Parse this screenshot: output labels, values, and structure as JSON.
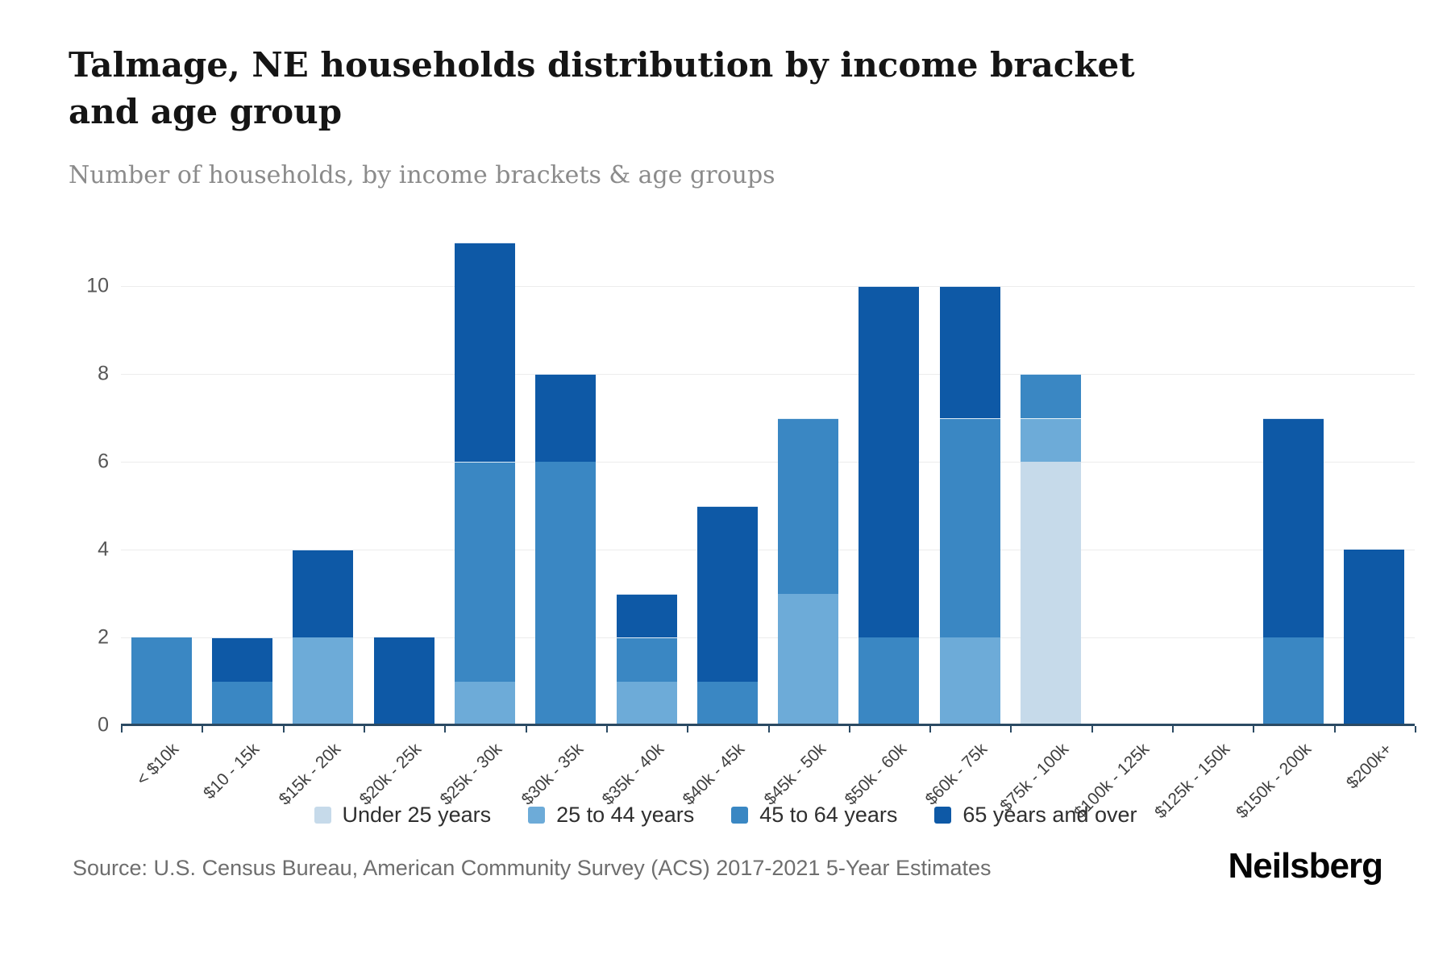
{
  "header": {
    "title": "Talmage, NE households distribution by income bracket and age group",
    "subtitle": "Number of households, by income brackets & age groups"
  },
  "chart_data": {
    "type": "bar",
    "stacked": true,
    "title": "Talmage, NE households distribution by income bracket and age group",
    "subtitle": "Number of households, by income brackets & age groups",
    "categories": [
      "< $10k",
      "$10 - 15k",
      "$15k - 20k",
      "$20k - 25k",
      "$25k - 30k",
      "$30k - 35k",
      "$35k - 40k",
      "$40k - 45k",
      "$45k - 50k",
      "$50k - 60k",
      "$60k - 75k",
      "$75k - 100k",
      "$100k - 125k",
      "$125k - 150k",
      "$150k - 200k",
      "$200k+"
    ],
    "series": [
      {
        "name": "Under 25 years",
        "color": "#c6daea",
        "values": [
          0,
          0,
          0,
          0,
          0,
          0,
          0,
          0,
          0,
          0,
          0,
          6,
          0,
          0,
          0,
          0
        ]
      },
      {
        "name": "25 to 44 years",
        "color": "#6dabd8",
        "values": [
          0,
          0,
          2,
          0,
          1,
          0,
          1,
          0,
          3,
          0,
          2,
          1,
          0,
          0,
          0,
          0
        ]
      },
      {
        "name": "45 to 64 years",
        "color": "#3a87c3",
        "values": [
          2,
          1,
          0,
          0,
          5,
          6,
          1,
          1,
          4,
          2,
          5,
          1,
          0,
          0,
          2,
          0
        ]
      },
      {
        "name": "65 years and over",
        "color": "#0e59a6",
        "values": [
          0,
          1,
          2,
          2,
          5,
          2,
          1,
          4,
          0,
          8,
          3,
          0,
          0,
          0,
          5,
          4
        ]
      }
    ],
    "totals": [
      2,
      2,
      4,
      2,
      11,
      8,
      3,
      5,
      7,
      10,
      10,
      8,
      0,
      0,
      7,
      4
    ],
    "xlabel": "",
    "ylabel": "",
    "ylim": [
      0,
      11
    ],
    "yticks": [
      0,
      2,
      4,
      6,
      8,
      10
    ],
    "grid": true,
    "legend_position": "bottom"
  },
  "footer": {
    "source": "Source: U.S. Census Bureau, American Community Survey (ACS) 2017-2021 5-Year Estimates",
    "logo": "Neilsberg"
  }
}
